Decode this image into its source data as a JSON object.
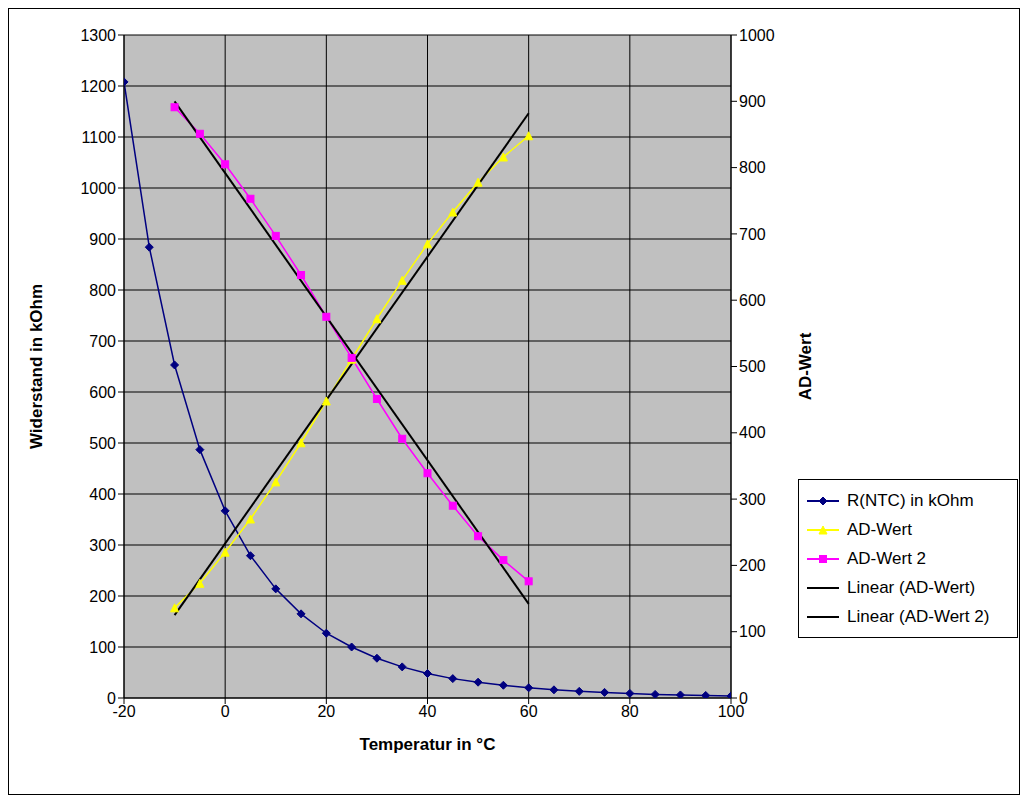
{
  "chart_data": {
    "type": "line",
    "x_label": "Temperatur in °C",
    "y_label": "Widerstand in kOhm",
    "y2_label": "AD-Wert",
    "xlim": [
      -20,
      100
    ],
    "xticks": [
      -20,
      0,
      20,
      40,
      60,
      80,
      100
    ],
    "ylim": [
      0,
      1300
    ],
    "yticks": [
      0,
      100,
      200,
      300,
      400,
      500,
      600,
      700,
      800,
      900,
      1000,
      1100,
      1200,
      1300
    ],
    "y2lim": [
      0,
      1000
    ],
    "y2ticks": [
      0,
      100,
      200,
      300,
      400,
      500,
      600,
      700,
      800,
      900,
      1000
    ],
    "grid": true,
    "legend": "right",
    "series": [
      {
        "name": "R(NTC) in kOhm",
        "color": "#000080",
        "marker": "diamond",
        "line_style": "solid",
        "x": [
          -20,
          -15,
          -10,
          -5,
          0,
          5,
          10,
          15,
          20,
          25,
          30,
          35,
          40,
          45,
          50,
          55,
          60,
          65,
          70,
          75,
          80,
          85,
          90,
          95,
          100
        ],
        "values": [
          1208,
          884,
          653,
          487,
          367,
          279,
          214,
          165,
          127,
          100,
          78,
          61,
          48,
          38,
          31,
          25,
          20,
          16,
          13,
          11,
          9,
          7,
          6,
          5,
          4
        ]
      },
      {
        "name": "AD-Wert",
        "color": "#FFFF00",
        "marker": "triangle",
        "line_style": "solid",
        "axis": "y2",
        "x": [
          -10,
          -5,
          0,
          5,
          10,
          15,
          20,
          25,
          30,
          35,
          40,
          45,
          50,
          55,
          60
        ],
        "values": [
          136,
          173,
          220,
          270,
          326,
          385,
          448,
          511,
          572,
          630,
          685,
          733,
          778,
          816,
          848
        ]
      },
      {
        "name": "AD-Wert 2",
        "color": "#FF00FF",
        "marker": "square",
        "line_style": "solid",
        "axis": "y2",
        "x": [
          -10,
          -5,
          0,
          5,
          10,
          15,
          20,
          25,
          30,
          35,
          40,
          45,
          50,
          55,
          60
        ],
        "values": [
          891,
          851,
          805,
          753,
          697,
          638,
          575,
          513,
          451,
          391,
          339,
          290,
          244,
          208,
          176
        ]
      },
      {
        "name": "Linear (AD-Wert)",
        "color": "#000000",
        "marker": "none",
        "line_style": "solid",
        "axis": "y2",
        "x": [
          -10,
          60
        ],
        "values": [
          125,
          882
        ]
      },
      {
        "name": "Linear (AD-Wert 2)",
        "color": "#000000",
        "marker": "none",
        "line_style": "solid",
        "axis": "y2",
        "x": [
          -10,
          60
        ],
        "values": [
          900,
          142
        ]
      }
    ]
  }
}
